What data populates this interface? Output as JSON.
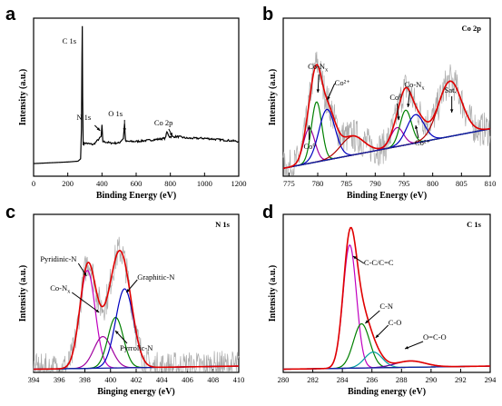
{
  "chart_data": [
    {
      "panel": "a",
      "type": "line",
      "xlabel": "Binding Energy (eV)",
      "ylabel": "Intensity (a.u.)",
      "xlim": [
        0,
        1200
      ],
      "xticks": [
        0,
        200,
        400,
        600,
        800,
        1000,
        1200
      ],
      "colors": {
        "survey": "#000000"
      },
      "annotations": [
        {
          "label": "C 1s",
          "x": 285
        },
        {
          "label": "N 1s",
          "x": 400
        },
        {
          "label": "O 1s",
          "x": 532
        },
        {
          "label": "Co 2p",
          "x": 780
        }
      ],
      "series": [
        {
          "key": "survey",
          "x": [
            0,
            100,
            200,
            260,
            275,
            280,
            283,
            285,
            287,
            290,
            300,
            350,
            395,
            400,
            405,
            450,
            500,
            525,
            532,
            538,
            600,
            700,
            770,
            780,
            795,
            850,
            900,
            1000,
            1100,
            1200
          ],
          "y": [
            0.08,
            0.085,
            0.09,
            0.095,
            0.11,
            0.3,
            0.75,
            0.95,
            0.5,
            0.2,
            0.21,
            0.2,
            0.25,
            0.32,
            0.22,
            0.21,
            0.21,
            0.24,
            0.33,
            0.22,
            0.22,
            0.23,
            0.24,
            0.28,
            0.25,
            0.25,
            0.24,
            0.24,
            0.23,
            0.22
          ]
        }
      ]
    },
    {
      "panel": "b",
      "type": "line",
      "title": "Co 2p",
      "xlabel": "Binding Energy (eV)",
      "ylabel": "Intensity (a.u.)",
      "xlim": [
        774,
        810
      ],
      "xticks": [
        775,
        780,
        785,
        790,
        795,
        800,
        805,
        810
      ],
      "colors": {
        "raw": "#aaaaaa",
        "fit": "#e00000",
        "background": "#1020a0",
        "co_nx": "#008000",
        "co2": "#0000c0",
        "co0": "#a000a0",
        "sat": "#b00000"
      },
      "annotations": [
        {
          "label": "Co-Nx",
          "x": 780.5
        },
        {
          "label": "Co²⁺",
          "x": 782.0
        },
        {
          "label": "Co⁰",
          "x": 778.5
        },
        {
          "label": "Co⁰",
          "x": 793.8
        },
        {
          "label": "Co-Nx",
          "x": 795.7
        },
        {
          "label": "Co²⁺",
          "x": 797.2
        },
        {
          "label": "Sat.",
          "x": 803.0
        }
      ],
      "peaks": [
        {
          "key": "co0",
          "center": 778.5,
          "height": 0.22,
          "sigma": 1.0
        },
        {
          "key": "co_nx",
          "center": 779.8,
          "height": 0.38,
          "sigma": 0.9
        },
        {
          "key": "co2",
          "center": 781.6,
          "height": 0.32,
          "sigma": 1.4
        },
        {
          "key": "sat",
          "center": 786.0,
          "height": 0.12,
          "sigma": 2.0
        },
        {
          "key": "co0",
          "center": 793.8,
          "height": 0.12,
          "sigma": 1.1
        },
        {
          "key": "co_nx",
          "center": 795.3,
          "height": 0.22,
          "sigma": 1.0
        },
        {
          "key": "co2",
          "center": 797.0,
          "height": 0.18,
          "sigma": 1.5
        },
        {
          "key": "sat",
          "center": 803.0,
          "height": 0.35,
          "sigma": 2.0
        }
      ],
      "background": {
        "x": [
          774,
          810
        ],
        "y": [
          0.05,
          0.3
        ]
      },
      "ylim": [
        0,
        1.0
      ]
    },
    {
      "panel": "c",
      "type": "line",
      "title": "N 1s",
      "xlabel": "Binging energy (eV)",
      "ylabel": "Intensity (a.u.)",
      "xlim": [
        394,
        410
      ],
      "xticks": [
        394,
        396,
        398,
        400,
        402,
        404,
        406,
        408,
        410
      ],
      "colors": {
        "raw": "#aaaaaa",
        "fit": "#e00000",
        "background": "#1020a0",
        "pyridinic": "#c000c0",
        "co_nx": "#a000a0",
        "pyrrolic": "#008000",
        "graphitic": "#0000c0"
      },
      "annotations": [
        {
          "label": "Pyridinic-N",
          "x": 398.2
        },
        {
          "label": "Co-Nx",
          "x": 399.4
        },
        {
          "label": "Graphitic-N",
          "x": 401.1
        },
        {
          "label": "Pyrrolic-N",
          "x": 400.3
        }
      ],
      "peaks": [
        {
          "key": "pyridinic",
          "center": 398.2,
          "height": 0.62,
          "sigma": 0.6
        },
        {
          "key": "co_nx",
          "center": 399.4,
          "height": 0.2,
          "sigma": 0.7
        },
        {
          "key": "pyrrolic",
          "center": 400.4,
          "height": 0.32,
          "sigma": 0.6
        },
        {
          "key": "graphitic",
          "center": 401.1,
          "height": 0.5,
          "sigma": 0.7
        }
      ],
      "background": {
        "x": [
          394,
          410
        ],
        "y": [
          0.02,
          0.04
        ]
      },
      "ylim": [
        0,
        1.0
      ]
    },
    {
      "panel": "d",
      "type": "line",
      "title": "C 1s",
      "xlabel": "Binding energy (eV)",
      "ylabel": "Intensity (a.u.)",
      "xlim": [
        280,
        294
      ],
      "xticks": [
        280,
        282,
        284,
        286,
        288,
        290,
        292,
        294
      ],
      "colors": {
        "fit": "#e00000",
        "background": "#1020a0",
        "cc": "#c000c0",
        "cn": "#008000",
        "co": "#00a0a0",
        "oco": "#6000a0"
      },
      "annotations": [
        {
          "label": "C-C/C=C",
          "x": 284.6
        },
        {
          "label": "C-N",
          "x": 285.3
        },
        {
          "label": "C-O",
          "x": 286.0
        },
        {
          "label": "O=C-O",
          "x": 288.6
        }
      ],
      "peaks": [
        {
          "key": "cc",
          "center": 284.5,
          "height": 0.78,
          "sigma": 0.45
        },
        {
          "key": "cn",
          "center": 285.3,
          "height": 0.28,
          "sigma": 0.55
        },
        {
          "key": "co",
          "center": 286.1,
          "height": 0.1,
          "sigma": 0.6
        },
        {
          "key": "oco",
          "center": 288.6,
          "height": 0.04,
          "sigma": 1.0
        }
      ],
      "background": {
        "x": [
          280,
          294
        ],
        "y": [
          0.02,
          0.04
        ]
      },
      "ylim": [
        0,
        1.0
      ]
    }
  ]
}
